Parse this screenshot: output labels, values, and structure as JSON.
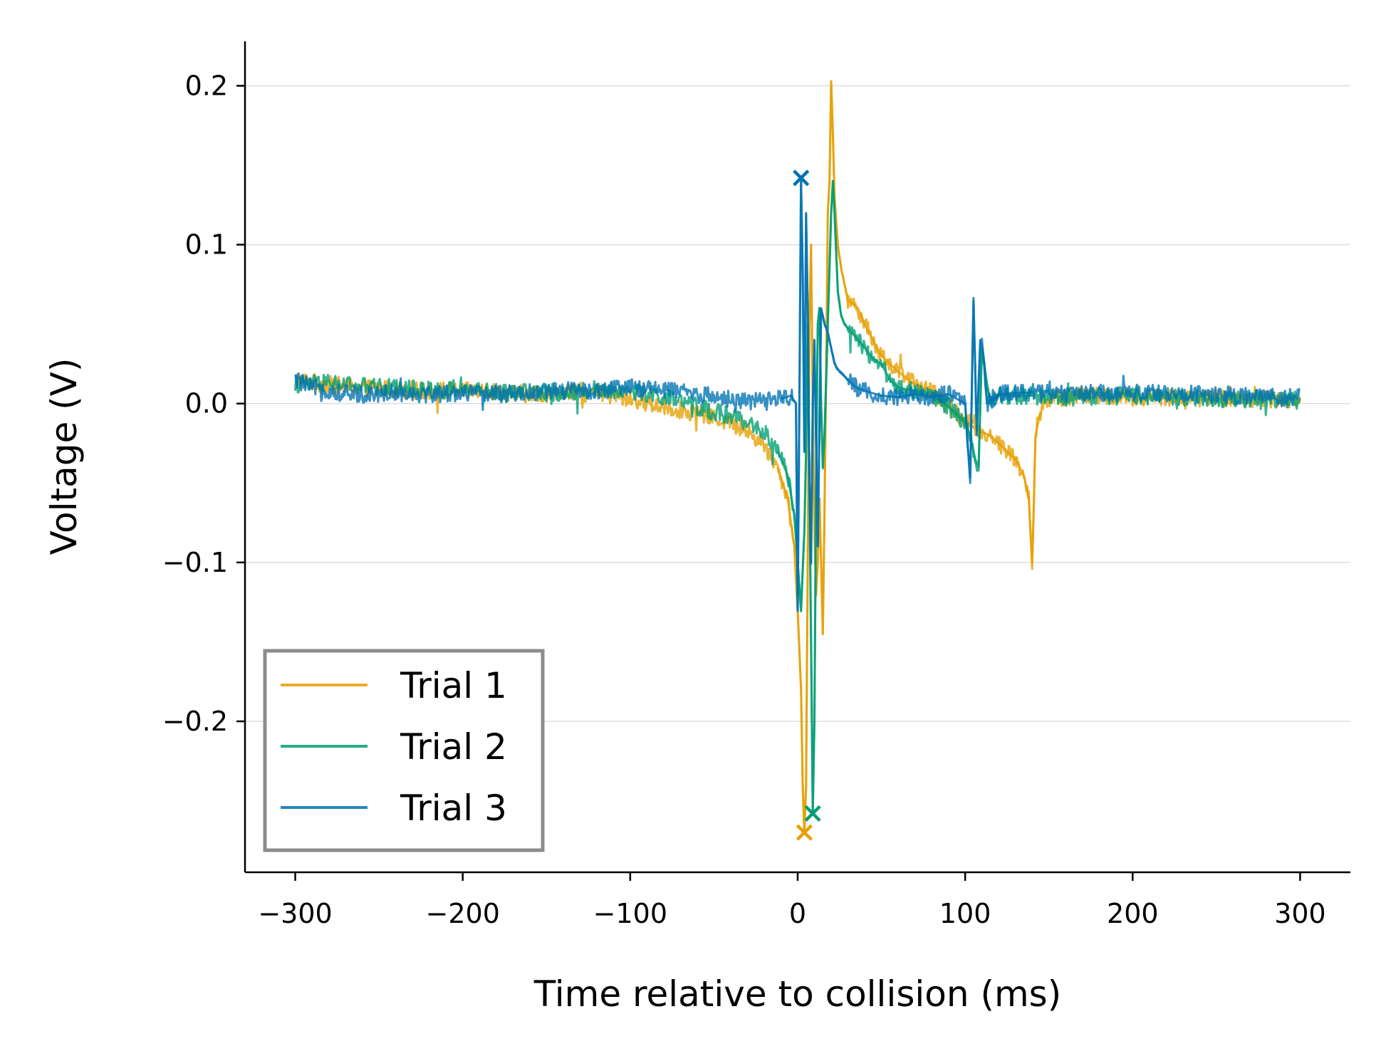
{
  "chart_data": {
    "type": "line",
    "title": "",
    "xlabel": "Time relative to collision (ms)",
    "ylabel": "Voltage (V)",
    "xlim": [
      -330,
      330
    ],
    "ylim": [
      -0.295,
      0.228
    ],
    "x_ticks": [
      {
        "value": -300,
        "label": "−300"
      },
      {
        "value": -200,
        "label": "−200"
      },
      {
        "value": -100,
        "label": "−100"
      },
      {
        "value": 0,
        "label": "0"
      },
      {
        "value": 100,
        "label": "100"
      },
      {
        "value": 200,
        "label": "200"
      },
      {
        "value": 300,
        "label": "300"
      }
    ],
    "y_ticks": [
      {
        "value": -0.2,
        "label": "−0.2"
      },
      {
        "value": -0.1,
        "label": "−0.1"
      },
      {
        "value": 0.0,
        "label": "0.0"
      },
      {
        "value": 0.1,
        "label": "0.1"
      },
      {
        "value": 0.2,
        "label": "0.2"
      }
    ],
    "grid": "horizontal",
    "legend_position": "lower-left",
    "series": [
      {
        "name": "Trial 1",
        "color": "#E69F00",
        "points": [
          [
            -300,
            0.015
          ],
          [
            -280,
            0.012
          ],
          [
            -260,
            0.01
          ],
          [
            -240,
            0.009
          ],
          [
            -220,
            0.008
          ],
          [
            -200,
            0.008
          ],
          [
            -180,
            0.007
          ],
          [
            -160,
            0.006
          ],
          [
            -140,
            0.007
          ],
          [
            -120,
            0.006
          ],
          [
            -100,
            0.003
          ],
          [
            -80,
            -0.002
          ],
          [
            -60,
            -0.006
          ],
          [
            -40,
            -0.012
          ],
          [
            -30,
            -0.018
          ],
          [
            -20,
            -0.026
          ],
          [
            -12,
            -0.04
          ],
          [
            -6,
            -0.06
          ],
          [
            -2,
            -0.09
          ],
          [
            0,
            -0.13
          ],
          [
            2,
            -0.18
          ],
          [
            3,
            -0.24
          ],
          [
            4,
            -0.27
          ],
          [
            5,
            -0.24
          ],
          [
            6,
            -0.1
          ],
          [
            7,
            0.05
          ],
          [
            8,
            0.1
          ],
          [
            9,
            0.0
          ],
          [
            10,
            -0.08
          ],
          [
            11,
            -0.12
          ],
          [
            12,
            -0.1
          ],
          [
            13,
            -0.06
          ],
          [
            14,
            -0.1
          ],
          [
            15,
            -0.145
          ],
          [
            16,
            -0.07
          ],
          [
            17,
            0.02
          ],
          [
            18,
            0.12
          ],
          [
            19,
            0.14
          ],
          [
            20,
            0.203
          ],
          [
            21,
            0.17
          ],
          [
            22,
            0.13
          ],
          [
            24,
            0.1
          ],
          [
            26,
            0.085
          ],
          [
            28,
            0.075
          ],
          [
            30,
            0.065
          ],
          [
            33,
            0.063
          ],
          [
            36,
            0.06
          ],
          [
            40,
            0.05
          ],
          [
            45,
            0.04
          ],
          [
            50,
            0.03
          ],
          [
            55,
            0.025
          ],
          [
            60,
            0.02
          ],
          [
            70,
            0.012
          ],
          [
            80,
            0.008
          ],
          [
            90,
            -0.002
          ],
          [
            100,
            -0.01
          ],
          [
            105,
            -0.015
          ],
          [
            110,
            -0.018
          ],
          [
            115,
            -0.02
          ],
          [
            120,
            -0.025
          ],
          [
            125,
            -0.03
          ],
          [
            130,
            -0.035
          ],
          [
            135,
            -0.045
          ],
          [
            138,
            -0.06
          ],
          [
            140,
            -0.104
          ],
          [
            142,
            -0.02
          ],
          [
            145,
            -0.005
          ],
          [
            150,
            0.003
          ],
          [
            170,
            0.005
          ],
          [
            200,
            0.004
          ],
          [
            230,
            0.004
          ],
          [
            260,
            0.003
          ],
          [
            280,
            0.003
          ],
          [
            300,
            0.003
          ]
        ],
        "marker": {
          "x": 4,
          "y": -0.27,
          "symbol": "x"
        }
      },
      {
        "name": "Trial 2",
        "color": "#009E73",
        "points": [
          [
            -300,
            0.012
          ],
          [
            -280,
            0.013
          ],
          [
            -260,
            0.011
          ],
          [
            -240,
            0.01
          ],
          [
            -220,
            0.009
          ],
          [
            -200,
            0.008
          ],
          [
            -180,
            0.007
          ],
          [
            -160,
            0.007
          ],
          [
            -140,
            0.007
          ],
          [
            -120,
            0.009
          ],
          [
            -100,
            0.008
          ],
          [
            -80,
            0.004
          ],
          [
            -60,
            -0.002
          ],
          [
            -40,
            -0.008
          ],
          [
            -30,
            -0.012
          ],
          [
            -20,
            -0.018
          ],
          [
            -12,
            -0.03
          ],
          [
            -6,
            -0.045
          ],
          [
            -2,
            -0.07
          ],
          [
            0,
            -0.1
          ],
          [
            2,
            -0.13
          ],
          [
            4,
            -0.08
          ],
          [
            5,
            -0.03
          ],
          [
            6,
            0.05
          ],
          [
            7,
            -0.05
          ],
          [
            8,
            -0.15
          ],
          [
            9,
            -0.258
          ],
          [
            10,
            -0.2
          ],
          [
            11,
            -0.05
          ],
          [
            12,
            0.05
          ],
          [
            13,
            0.06
          ],
          [
            14,
            0.0
          ],
          [
            15,
            -0.04
          ],
          [
            16,
            -0.02
          ],
          [
            18,
            0.05
          ],
          [
            20,
            0.12
          ],
          [
            21,
            0.14
          ],
          [
            22,
            0.12
          ],
          [
            24,
            0.07
          ],
          [
            26,
            0.055
          ],
          [
            28,
            0.05
          ],
          [
            32,
            0.045
          ],
          [
            36,
            0.04
          ],
          [
            40,
            0.035
          ],
          [
            45,
            0.028
          ],
          [
            50,
            0.025
          ],
          [
            55,
            0.015
          ],
          [
            60,
            0.01
          ],
          [
            70,
            0.008
          ],
          [
            80,
            0.005
          ],
          [
            90,
            -0.002
          ],
          [
            100,
            -0.012
          ],
          [
            103,
            -0.02
          ],
          [
            106,
            -0.035
          ],
          [
            108,
            -0.04
          ],
          [
            110,
            0.035
          ],
          [
            112,
            0.02
          ],
          [
            115,
            0.0
          ],
          [
            120,
            0.005
          ],
          [
            140,
            0.005
          ],
          [
            160,
            0.004
          ],
          [
            200,
            0.005
          ],
          [
            230,
            0.004
          ],
          [
            260,
            0.003
          ],
          [
            280,
            0.003
          ],
          [
            300,
            0.002
          ]
        ],
        "marker": {
          "x": 9,
          "y": -0.258,
          "symbol": "x"
        }
      },
      {
        "name": "Trial 3",
        "color": "#0072B2",
        "points": [
          [
            -300,
            0.015
          ],
          [
            -290,
            0.01
          ],
          [
            -280,
            0.008
          ],
          [
            -270,
            0.006
          ],
          [
            -260,
            0.006
          ],
          [
            -240,
            0.007
          ],
          [
            -220,
            0.006
          ],
          [
            -200,
            0.007
          ],
          [
            -180,
            0.006
          ],
          [
            -160,
            0.007
          ],
          [
            -140,
            0.008
          ],
          [
            -120,
            0.008
          ],
          [
            -100,
            0.01
          ],
          [
            -80,
            0.009
          ],
          [
            -60,
            0.006
          ],
          [
            -40,
            0.003
          ],
          [
            -20,
            0.001
          ],
          [
            -10,
            0.003
          ],
          [
            -4,
            0.005
          ],
          [
            -1,
            0.0
          ],
          [
            0,
            -0.13
          ],
          [
            1,
            0.0
          ],
          [
            2,
            0.142
          ],
          [
            3,
            0.08
          ],
          [
            4,
            -0.03
          ],
          [
            5,
            0.12
          ],
          [
            6,
            0.06
          ],
          [
            7,
            -0.05
          ],
          [
            8,
            -0.1
          ],
          [
            9,
            0.0
          ],
          [
            10,
            0.04
          ],
          [
            12,
            -0.09
          ],
          [
            14,
            0.06
          ],
          [
            16,
            0.05
          ],
          [
            18,
            0.045
          ],
          [
            20,
            0.035
          ],
          [
            22,
            0.025
          ],
          [
            25,
            0.02
          ],
          [
            30,
            0.015
          ],
          [
            35,
            0.01
          ],
          [
            40,
            0.008
          ],
          [
            50,
            0.005
          ],
          [
            60,
            0.004
          ],
          [
            70,
            0.006
          ],
          [
            80,
            0.004
          ],
          [
            90,
            0.006
          ],
          [
            100,
            0.0
          ],
          [
            103,
            -0.05
          ],
          [
            105,
            0.065
          ],
          [
            107,
            -0.02
          ],
          [
            109,
            0.04
          ],
          [
            111,
            0.03
          ],
          [
            113,
            0.0
          ],
          [
            115,
            0.002
          ],
          [
            120,
            0.006
          ],
          [
            140,
            0.007
          ],
          [
            160,
            0.006
          ],
          [
            180,
            0.007
          ],
          [
            200,
            0.007
          ],
          [
            220,
            0.006
          ],
          [
            240,
            0.006
          ],
          [
            260,
            0.005
          ],
          [
            280,
            0.004
          ],
          [
            300,
            0.004
          ]
        ],
        "marker": {
          "x": 2,
          "y": 0.142,
          "symbol": "x"
        }
      }
    ]
  }
}
